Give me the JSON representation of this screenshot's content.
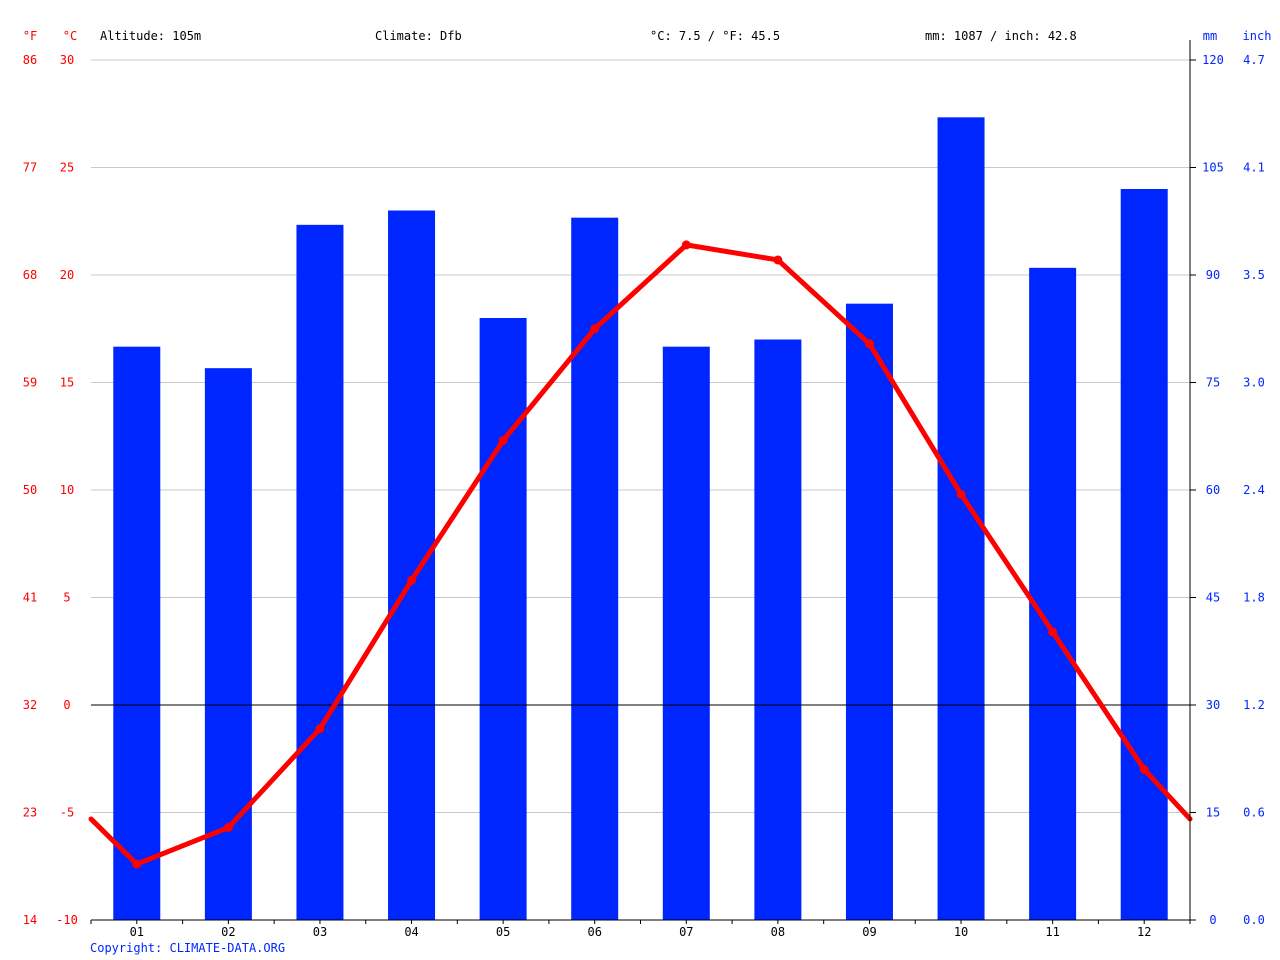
{
  "header": {
    "f_unit": "°F",
    "c_unit": "°C",
    "altitude": "Altitude: 105m",
    "climate": "Climate: Dfb",
    "temp_avg": "°C: 7.5 / °F: 45.5",
    "precip_total": "mm: 1087 / inch: 42.8",
    "mm_unit": "mm",
    "inch_unit": "inch"
  },
  "footer": {
    "copyright": "Copyright: CLIMATE-DATA.ORG"
  },
  "colors": {
    "temperature": "#ff0000",
    "precipitation": "#0026ff",
    "grid": "#c8c8c8",
    "axis": "#000000"
  },
  "chart_data": {
    "type": "bar",
    "categories": [
      "01",
      "02",
      "03",
      "04",
      "05",
      "06",
      "07",
      "08",
      "09",
      "10",
      "11",
      "12"
    ],
    "series": [
      {
        "type": "bar",
        "axis": "right",
        "unit": "mm",
        "values": [
          80,
          77,
          97,
          99,
          84,
          98,
          80,
          81,
          86,
          112,
          91,
          102
        ]
      },
      {
        "type": "line",
        "axis": "left",
        "unit": "°C",
        "values": [
          -7.4,
          -5.7,
          -1.1,
          5.8,
          12.3,
          17.5,
          21.4,
          20.7,
          16.8,
          9.8,
          3.4,
          -3.0
        ],
        "edge_values": [
          -5.3,
          -5.3
        ]
      }
    ],
    "left_ticks_c": [
      "30",
      "25",
      "20",
      "15",
      "10",
      "5",
      "0",
      "-5",
      "-10"
    ],
    "left_ticks_f": [
      "86",
      "77",
      "68",
      "59",
      "50",
      "41",
      "32",
      "23",
      "14"
    ],
    "right_ticks_mm": [
      "120",
      "105",
      "90",
      "75",
      "60",
      "45",
      "30",
      "15",
      "0"
    ],
    "right_ticks_inch": [
      "4.7",
      "4.1",
      "3.5",
      "3.0",
      "2.4",
      "1.8",
      "1.2",
      "0.6",
      "0.0"
    ],
    "ylim_c": [
      -10,
      30
    ],
    "ylim_mm": [
      0,
      120
    ],
    "grid": true
  }
}
